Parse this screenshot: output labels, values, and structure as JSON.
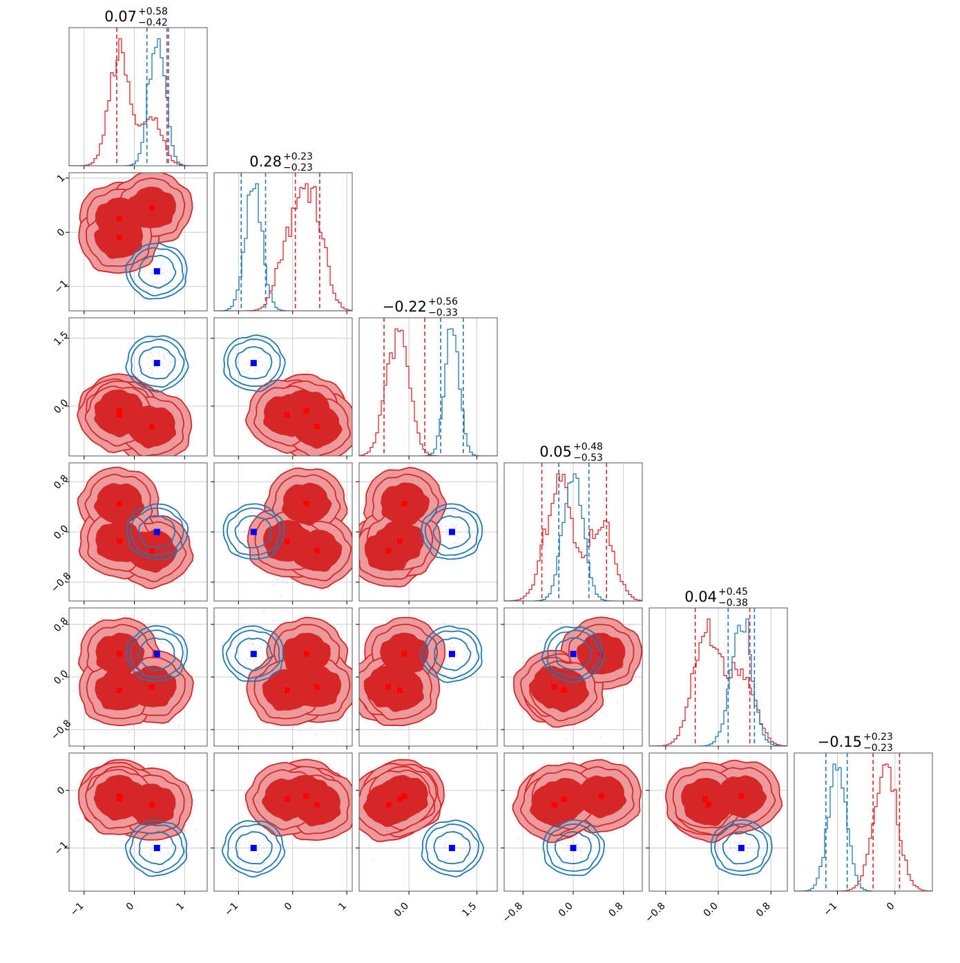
{
  "chart_data": {
    "type": "corner",
    "title": "",
    "colors": {
      "red_fill_dark": "#d62728",
      "red_fill_light": "#ec9a9b",
      "red_line": "#d62728",
      "blue_line": "#1f77b4",
      "blue_marker": "#0000ff",
      "red_marker": "#ff0000",
      "grid": "#cccccc",
      "axis": "#000000"
    },
    "params": [
      {
        "title_median": "0.07",
        "title_plus": "+0.58",
        "title_minus": "−0.42",
        "ticks": [
          "−1",
          "0",
          "1"
        ]
      },
      {
        "title_median": "0.28",
        "title_plus": "+0.23",
        "title_minus": "−0.23",
        "ticks": [
          "−1",
          "0",
          "1"
        ]
      },
      {
        "title_median": "−0.22",
        "title_plus": "+0.56",
        "title_minus": "−0.33",
        "ticks": [
          "0.0",
          "1.5"
        ]
      },
      {
        "title_median": "0.05",
        "title_plus": "+0.48",
        "title_minus": "−0.53",
        "ticks": [
          "−0.8",
          "0.0",
          "0.8"
        ]
      },
      {
        "title_median": "0.04",
        "title_plus": "+0.45",
        "title_minus": "−0.38",
        "ticks": [
          "−0.8",
          "0.0",
          "0.8"
        ]
      },
      {
        "title_median": "−0.15",
        "title_plus": "+0.23",
        "title_minus": "−0.23",
        "ticks": [
          "−1",
          "0"
        ]
      }
    ],
    "ranges": [
      [
        -1.3,
        1.45
      ],
      [
        -1.45,
        1.1
      ],
      [
        -1.1,
        1.95
      ],
      [
        -1.1,
        1.1
      ],
      [
        -1.05,
        1.05
      ],
      [
        -1.75,
        0.65
      ]
    ],
    "tick_values": [
      [
        -1,
        0,
        1
      ],
      [
        -1,
        0,
        1
      ],
      [
        0,
        1.5
      ],
      [
        -0.8,
        0,
        0.8
      ],
      [
        -0.8,
        0,
        0.8
      ],
      [
        -1,
        0
      ]
    ],
    "red_modes": [
      [
        -0.3,
        0.35,
        -0.3
      ],
      [
        0.25,
        0.45,
        -0.1
      ],
      [
        -0.1,
        -0.45,
        -0.2
      ],
      [
        0.45,
        -0.3,
        -0.15
      ],
      [
        0.35,
        -0.15,
        -0.2
      ],
      [
        -0.1,
        -0.25,
        -0.15
      ]
    ],
    "blue_centers": [
      0.45,
      -0.72,
      0.95,
      0.0,
      0.35,
      -1.0
    ],
    "red_quantiles": [
      [
        -0.35,
        0.65
      ],
      [
        0.05,
        0.5
      ],
      [
        -0.55,
        0.35
      ],
      [
        -0.5,
        0.53
      ],
      [
        -0.35,
        0.48
      ],
      [
        -0.38,
        0.08
      ]
    ],
    "blue_quantiles": [
      [
        0.25,
        0.68
      ],
      [
        -0.95,
        -0.5
      ],
      [
        0.7,
        1.2
      ],
      [
        -0.23,
        0.25
      ],
      [
        0.15,
        0.55
      ],
      [
        -1.2,
        -0.83
      ]
    ],
    "grid": true
  }
}
